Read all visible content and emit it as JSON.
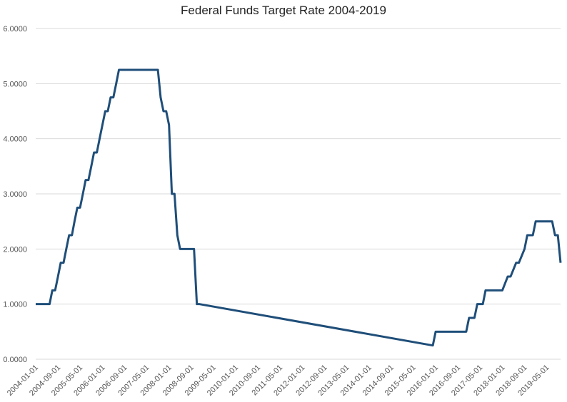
{
  "chart_data": {
    "type": "line",
    "title": "Federal Funds Target Rate 2004-2019",
    "xlabel": "",
    "ylabel": "",
    "ylim": [
      0,
      6
    ],
    "y_ticks": [
      "0.0000",
      "1.0000",
      "2.0000",
      "3.0000",
      "4.0000",
      "5.0000",
      "6.0000"
    ],
    "x_ticks": [
      "2004-01-01",
      "2004-09-01",
      "2005-05-01",
      "2006-01-01",
      "2006-09-01",
      "2007-05-01",
      "2008-01-01",
      "2008-09-01",
      "2009-05-01",
      "2010-01-01",
      "2010-09-01",
      "2011-05-01",
      "2012-01-01",
      "2012-09-01",
      "2013-05-01",
      "2014-01-01",
      "2014-09-01",
      "2015-05-01",
      "2016-01-01",
      "2016-09-01",
      "2017-05-01",
      "2018-01-01",
      "2018-09-01",
      "2019-05-01"
    ],
    "grid": true,
    "legend": "none",
    "line_color": "#1f4e79",
    "series": [
      {
        "x": [
          "2004-01-01",
          "2004-06-01",
          "2004-07-01",
          "2004-08-01",
          "2004-09-01",
          "2004-10-01",
          "2004-11-01",
          "2004-12-01",
          "2005-01-01",
          "2005-02-01",
          "2005-03-01",
          "2005-04-01",
          "2005-05-01",
          "2005-06-01",
          "2005-07-01",
          "2005-08-01",
          "2005-09-01",
          "2005-10-01",
          "2005-11-01",
          "2005-12-01",
          "2006-01-01",
          "2006-02-01",
          "2006-03-01",
          "2006-04-01",
          "2006-05-01",
          "2006-06-01",
          "2006-07-01",
          "2007-09-01",
          "2007-10-01",
          "2007-11-01",
          "2007-12-01",
          "2008-01-01",
          "2008-02-01",
          "2008-03-01",
          "2008-04-01",
          "2008-05-01",
          "2008-10-01",
          "2008-11-01",
          "2008-12-01",
          "2015-12-01",
          "2016-01-01",
          "2016-12-01",
          "2017-01-01",
          "2017-03-01",
          "2017-04-01",
          "2017-06-01",
          "2017-07-01",
          "2017-12-01",
          "2018-01-01",
          "2018-03-01",
          "2018-04-01",
          "2018-06-01",
          "2018-07-01",
          "2018-09-01",
          "2018-10-01",
          "2018-12-01",
          "2019-01-01",
          "2019-07-01",
          "2019-08-01",
          "2019-09-01",
          "2019-10-01"
        ],
        "values": [
          1.0,
          1.0,
          1.25,
          1.25,
          1.5,
          1.75,
          1.75,
          2.0,
          2.25,
          2.25,
          2.5,
          2.75,
          2.75,
          3.0,
          3.25,
          3.25,
          3.5,
          3.75,
          3.75,
          4.0,
          4.25,
          4.5,
          4.5,
          4.75,
          4.75,
          5.0,
          5.25,
          5.25,
          4.75,
          4.5,
          4.5,
          4.25,
          3.0,
          3.0,
          2.25,
          2.0,
          2.0,
          1.0,
          1.0,
          0.25,
          0.5,
          0.5,
          0.75,
          0.75,
          1.0,
          1.0,
          1.25,
          1.25,
          1.25,
          1.5,
          1.5,
          1.75,
          1.75,
          2.0,
          2.25,
          2.25,
          2.5,
          2.5,
          2.25,
          2.25,
          1.75
        ]
      }
    ]
  }
}
